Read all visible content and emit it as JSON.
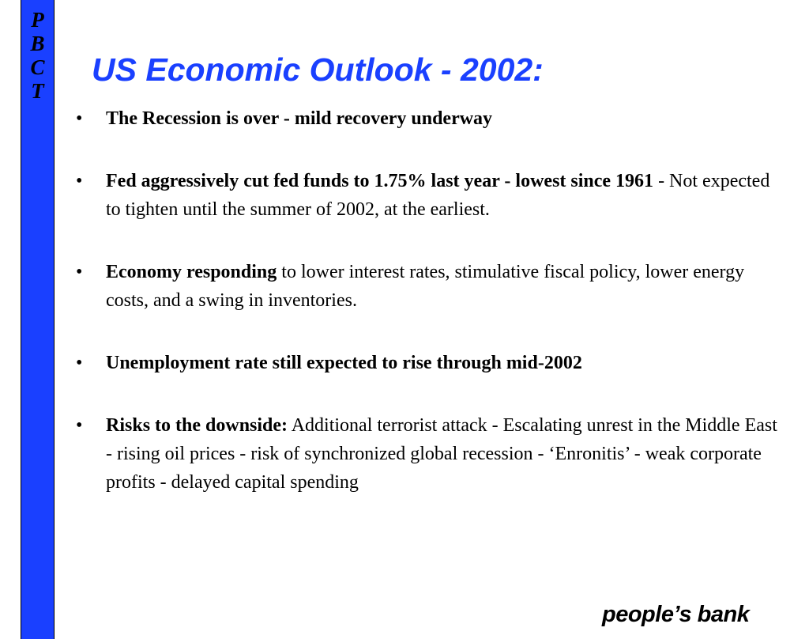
{
  "sidebar": {
    "letters": [
      "P",
      "B",
      "C",
      "T"
    ],
    "color": "#1a40ff"
  },
  "slide": {
    "title": "US Economic Outlook - 2002:",
    "title_color": "#1a40ff",
    "bullet_symbol": "•",
    "bullets": [
      {
        "bold": "The Recession is over - mild recovery underway",
        "normal": ""
      },
      {
        "bold": "Fed aggressively cut fed funds to 1.75% last year  - lowest since 1961",
        "normal": " - Not expected to tighten until the summer of 2002, at the earliest."
      },
      {
        "bold": "Economy responding",
        "normal": " to lower interest rates, stimulative fiscal policy, lower energy costs, and a swing in inventories."
      },
      {
        "bold": "Unemployment rate still expected to rise through mid-2002",
        "normal": ""
      },
      {
        "bold": "Risks to the downside:",
        "normal": " Additional terrorist attack - Escalating unrest in the Middle East - rising oil prices - risk of synchronized global recession - ‘Enronitis’ - weak corporate profits - delayed capital spending"
      }
    ]
  },
  "footer": {
    "logo_text": "people’s bank"
  }
}
